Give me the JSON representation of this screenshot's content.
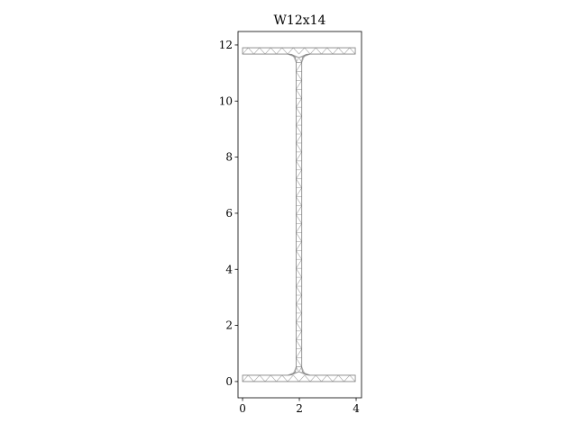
{
  "chart_data": {
    "type": "mesh",
    "title": "W12x14",
    "xlabel": "",
    "ylabel": "",
    "xlim": [
      -0.16,
      4.19
    ],
    "ylim": [
      -0.58,
      12.48
    ],
    "xticks": [
      0,
      2,
      4
    ],
    "xtick_labels": [
      "0",
      "2",
      "4"
    ],
    "yticks": [
      0,
      2,
      4,
      6,
      8,
      10,
      12
    ],
    "ytick_labels": [
      "0",
      "2",
      "4",
      "6",
      "8",
      "10",
      "12"
    ],
    "grid": false,
    "section": {
      "d": 11.9,
      "bf": 3.97,
      "tf": 0.225,
      "tw": 0.2,
      "fillet_r": 0.3
    },
    "mesh_color": "#a0a0a0",
    "outline_color": "#808080"
  }
}
